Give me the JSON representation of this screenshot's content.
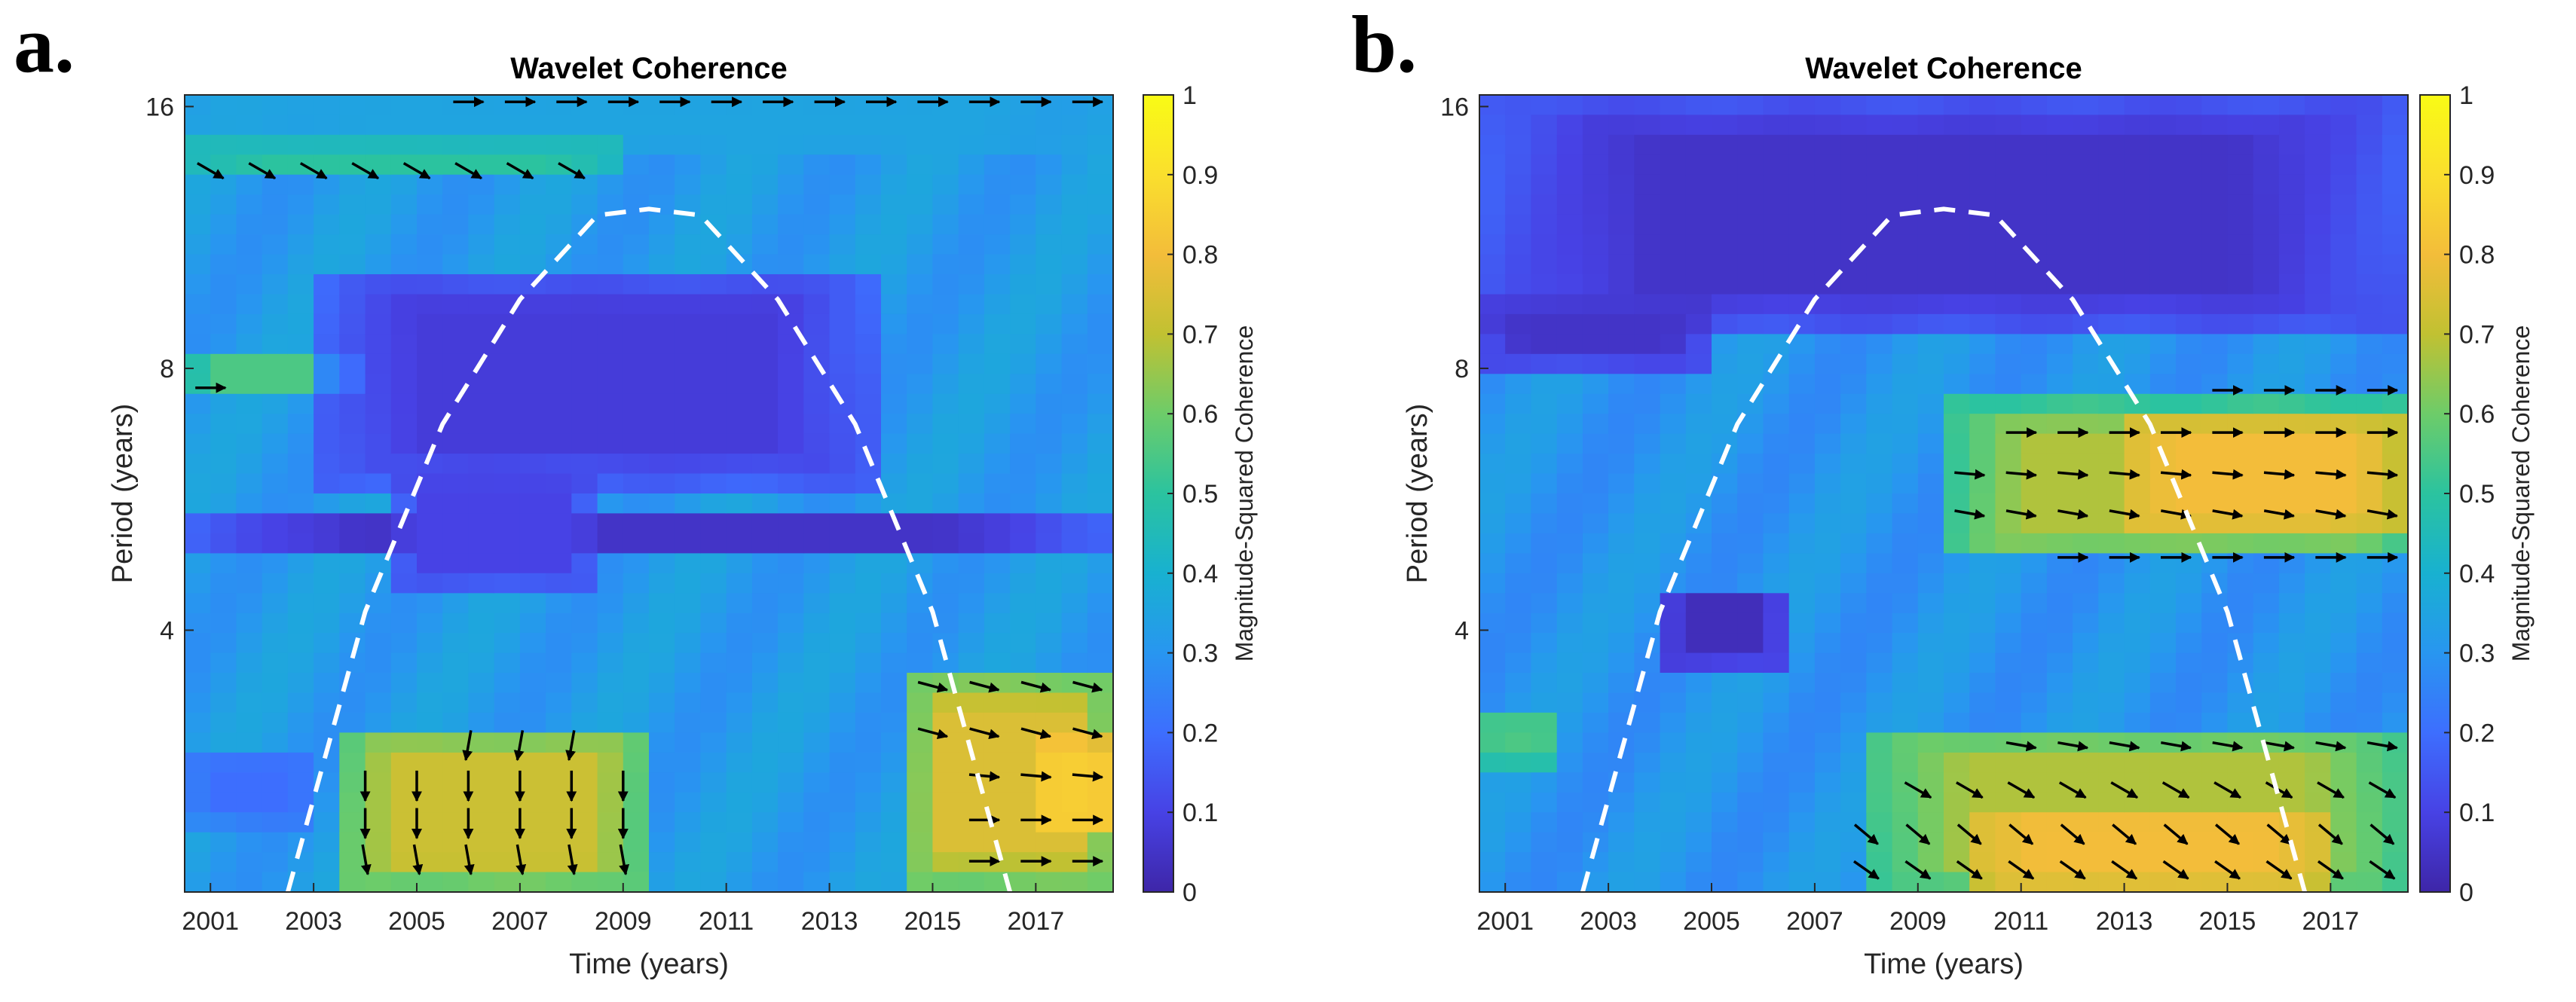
{
  "panels": [
    {
      "letter": "a."
    },
    {
      "letter": "b."
    }
  ],
  "colors": {
    "colormap": [
      "#3e26a8",
      "#4742e5",
      "#3d6efe",
      "#2896f0",
      "#18b1d0",
      "#2bc39f",
      "#6dcc69",
      "#c1c132",
      "#f3bd3a",
      "#fadf2d",
      "#f9fb15"
    ],
    "coi_line": "#ffffff",
    "arrow": "#000000"
  },
  "chart_data": [
    {
      "type": "heatmap",
      "panel": "a.",
      "title": "Wavelet Coherence",
      "xlabel": "Time (years)",
      "ylabel": "Period (years)",
      "colorbar_label": "Magnitude-Squared Coherence",
      "x_ticks": [
        2001,
        2003,
        2005,
        2007,
        2009,
        2011,
        2013,
        2015,
        2017
      ],
      "y_ticks": [
        4,
        8,
        16
      ],
      "y_scale": "log2",
      "xlim": [
        2000.5,
        2018.5
      ],
      "ylim": [
        2,
        16.5
      ],
      "colorbar_ticks": [
        "0",
        "0.1",
        "0.2",
        "0.3",
        "0.4",
        "0.5",
        "0.6",
        "0.7",
        "0.8",
        "0.9",
        "1"
      ],
      "clim": [
        0,
        1
      ],
      "cone_of_influence": {
        "x": [
          2002.5,
          2004,
          2005.5,
          2007,
          2008.5,
          2009.5,
          2010.5,
          2012,
          2013.5,
          2015,
          2016.5
        ],
        "y": [
          2,
          4.2,
          6.9,
          9.6,
          12,
          12.2,
          12,
          9.6,
          6.9,
          4.2,
          2
        ]
      },
      "coherence_regions": [
        {
          "x": [
            2000.5,
            2018.5
          ],
          "y": [
            14.2,
            16.5
          ],
          "value": 0.35
        },
        {
          "x": [
            2000.5,
            2009
          ],
          "y": [
            13.3,
            14.5
          ],
          "value": 0.5
        },
        {
          "x": [
            2000.5,
            2004
          ],
          "y": [
            7.3,
            8.3
          ],
          "value": 0.55
        },
        {
          "x": [
            2003,
            2014
          ],
          "y": [
            5.8,
            10.5
          ],
          "value": 0.08
        },
        {
          "x": [
            2000.5,
            2018.5
          ],
          "y": [
            4.8,
            5.5
          ],
          "value": 0.05
        },
        {
          "x": [
            2004.5,
            2008.5
          ],
          "y": [
            4.4,
            6.2
          ],
          "value": 0.1
        },
        {
          "x": [
            2000.5,
            2003
          ],
          "y": [
            2.4,
            2.9
          ],
          "value": 0.2
        },
        {
          "x": [
            2003.5,
            2009.5
          ],
          "y": [
            2,
            3.1
          ],
          "value": 0.72
        },
        {
          "x": [
            2014.5,
            2018.5
          ],
          "y": [
            2,
            3.6
          ],
          "value": 0.75
        },
        {
          "x": [
            2017,
            2018.5
          ],
          "y": [
            2.3,
            3
          ],
          "value": 0.85
        }
      ],
      "phase_arrows": [
        {
          "x": [
            2001,
            2002,
            2003,
            2004,
            2005,
            2006,
            2007,
            2008
          ],
          "y": 13.5,
          "angle": -30
        },
        {
          "x": [
            2006,
            2007,
            2008,
            2009,
            2010,
            2011,
            2012,
            2013,
            2014,
            2015,
            2016,
            2017,
            2018
          ],
          "y": 16.2,
          "angle": 0
        },
        {
          "x": [
            2001
          ],
          "y": 7.6,
          "angle": 0
        },
        {
          "x": [
            2006,
            2007,
            2008
          ],
          "y": 2.95,
          "angle": -100
        },
        {
          "x": [
            2004,
            2005,
            2006,
            2007,
            2008,
            2009
          ],
          "y": 2.65,
          "angle": -90
        },
        {
          "x": [
            2004,
            2005,
            2006,
            2007,
            2008,
            2009
          ],
          "y": 2.4,
          "angle": -90
        },
        {
          "x": [
            2004,
            2005,
            2006,
            2007,
            2008,
            2009
          ],
          "y": 2.18,
          "angle": -80
        },
        {
          "x": [
            2015,
            2016,
            2017,
            2018
          ],
          "y": 3.45,
          "angle": -15
        },
        {
          "x": [
            2015,
            2016,
            2017,
            2018
          ],
          "y": 3.05,
          "angle": -15
        },
        {
          "x": [
            2016,
            2017,
            2018
          ],
          "y": 2.72,
          "angle": -5
        },
        {
          "x": [
            2016,
            2017,
            2018
          ],
          "y": 2.42,
          "angle": 0
        },
        {
          "x": [
            2016,
            2017,
            2018
          ],
          "y": 2.17,
          "angle": 0
        }
      ]
    },
    {
      "type": "heatmap",
      "panel": "b.",
      "title": "Wavelet Coherence",
      "xlabel": "Time (years)",
      "ylabel": "Period (years)",
      "colorbar_label": "Magnitude-Squared Coherence",
      "x_ticks": [
        2001,
        2003,
        2005,
        2007,
        2009,
        2011,
        2013,
        2015,
        2017
      ],
      "y_ticks": [
        4,
        8,
        16
      ],
      "y_scale": "log2",
      "xlim": [
        2000.5,
        2018.5
      ],
      "ylim": [
        2,
        16.5
      ],
      "colorbar_ticks": [
        "0",
        "0.1",
        "0.2",
        "0.3",
        "0.4",
        "0.5",
        "0.6",
        "0.7",
        "0.8",
        "0.9",
        "1"
      ],
      "clim": [
        0,
        1
      ],
      "cone_of_influence": {
        "x": [
          2002.5,
          2004,
          2005.5,
          2007,
          2008.5,
          2009.5,
          2010.5,
          2012,
          2013.5,
          2015,
          2016.5
        ],
        "y": [
          2,
          4.2,
          6.9,
          9.6,
          12,
          12.2,
          12,
          9.6,
          6.9,
          4.2,
          2
        ]
      },
      "coherence_regions": [
        {
          "x": [
            2000.5,
            2018.5
          ],
          "y": [
            8.8,
            16.5
          ],
          "value": 0.05
        },
        {
          "x": [
            2000.5,
            2005
          ],
          "y": [
            8,
            9.5
          ],
          "value": 0.05
        },
        {
          "x": [
            2004,
            2006.5
          ],
          "y": [
            3.6,
            4.5
          ],
          "value": 0.03
        },
        {
          "x": [
            2000.5,
            2002
          ],
          "y": [
            2.8,
            3.2
          ],
          "value": 0.55
        },
        {
          "x": [
            2009.5,
            2018.5
          ],
          "y": [
            4.8,
            7.3
          ],
          "value": 0.68
        },
        {
          "x": [
            2013,
            2018.5
          ],
          "y": [
            5.2,
            7.0
          ],
          "value": 0.8
        },
        {
          "x": [
            2008,
            2018.5
          ],
          "y": [
            2,
            3.1
          ],
          "value": 0.68
        },
        {
          "x": [
            2010,
            2017
          ],
          "y": [
            2,
            2.5
          ],
          "value": 0.8
        }
      ],
      "phase_arrows": [
        {
          "x": [
            2015,
            2016,
            2017,
            2018
          ],
          "y": 7.55,
          "angle": 0
        },
        {
          "x": [
            2011,
            2012,
            2013,
            2014,
            2015,
            2016,
            2017,
            2018
          ],
          "y": 6.75,
          "angle": 0
        },
        {
          "x": [
            2010,
            2011,
            2012,
            2013,
            2014,
            2015,
            2016,
            2017,
            2018
          ],
          "y": 6.05,
          "angle": -5
        },
        {
          "x": [
            2010,
            2011,
            2012,
            2013,
            2014,
            2015,
            2016,
            2017,
            2018
          ],
          "y": 5.45,
          "angle": -10
        },
        {
          "x": [
            2012,
            2013,
            2014,
            2015,
            2016,
            2017,
            2018
          ],
          "y": 4.85,
          "angle": 0
        },
        {
          "x": [
            2011,
            2012,
            2013,
            2014,
            2015,
            2016,
            2017,
            2018
          ],
          "y": 2.95,
          "angle": -10
        },
        {
          "x": [
            2009,
            2010,
            2011,
            2012,
            2013,
            2014,
            2015,
            2016,
            2017,
            2018
          ],
          "y": 2.62,
          "angle": -30
        },
        {
          "x": [
            2008,
            2009,
            2010,
            2011,
            2012,
            2013,
            2014,
            2015,
            2016,
            2017,
            2018
          ],
          "y": 2.33,
          "angle": -40
        },
        {
          "x": [
            2008,
            2009,
            2010,
            2011,
            2012,
            2013,
            2014,
            2015,
            2016,
            2017,
            2018
          ],
          "y": 2.12,
          "angle": -35
        }
      ]
    }
  ]
}
